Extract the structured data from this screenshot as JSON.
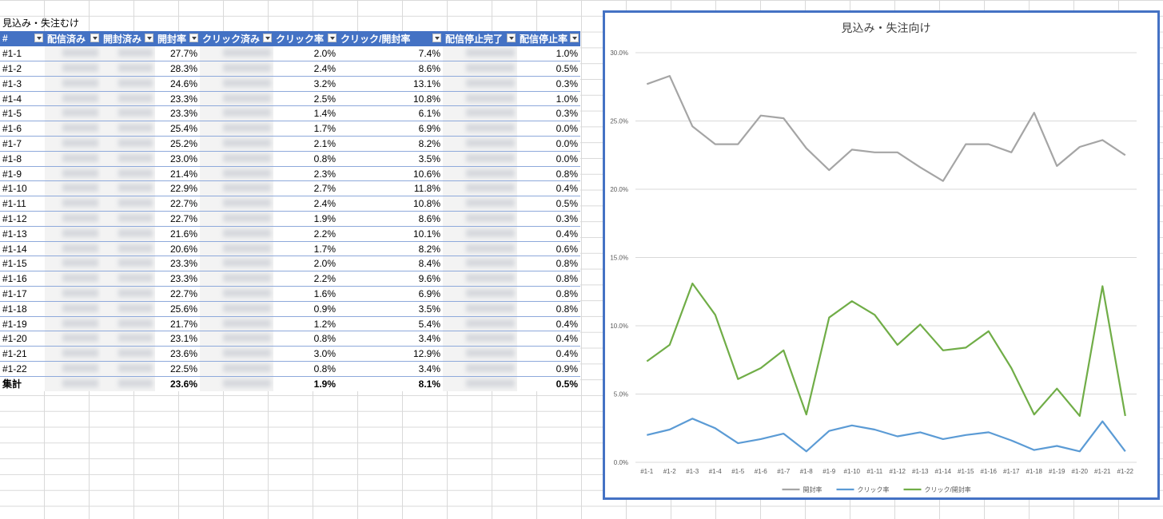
{
  "sheet_title": "見込み・失注むけ",
  "table": {
    "headers": [
      "#",
      "配信済み",
      "開封済み",
      "開封率",
      "クリック済み",
      "クリック率",
      "クリック/開封率",
      "配信停止完了",
      "配信停止率"
    ],
    "rows": [
      {
        "id": "#1-1",
        "open": "27.7%",
        "click": "2.0%",
        "cto": "7.4%",
        "unsub": "1.0%"
      },
      {
        "id": "#1-2",
        "open": "28.3%",
        "click": "2.4%",
        "cto": "8.6%",
        "unsub": "0.5%"
      },
      {
        "id": "#1-3",
        "open": "24.6%",
        "click": "3.2%",
        "cto": "13.1%",
        "unsub": "0.3%"
      },
      {
        "id": "#1-4",
        "open": "23.3%",
        "click": "2.5%",
        "cto": "10.8%",
        "unsub": "1.0%"
      },
      {
        "id": "#1-5",
        "open": "23.3%",
        "click": "1.4%",
        "cto": "6.1%",
        "unsub": "0.3%"
      },
      {
        "id": "#1-6",
        "open": "25.4%",
        "click": "1.7%",
        "cto": "6.9%",
        "unsub": "0.0%"
      },
      {
        "id": "#1-7",
        "open": "25.2%",
        "click": "2.1%",
        "cto": "8.2%",
        "unsub": "0.0%"
      },
      {
        "id": "#1-8",
        "open": "23.0%",
        "click": "0.8%",
        "cto": "3.5%",
        "unsub": "0.0%"
      },
      {
        "id": "#1-9",
        "open": "21.4%",
        "click": "2.3%",
        "cto": "10.6%",
        "unsub": "0.8%"
      },
      {
        "id": "#1-10",
        "open": "22.9%",
        "click": "2.7%",
        "cto": "11.8%",
        "unsub": "0.4%"
      },
      {
        "id": "#1-11",
        "open": "22.7%",
        "click": "2.4%",
        "cto": "10.8%",
        "unsub": "0.5%"
      },
      {
        "id": "#1-12",
        "open": "22.7%",
        "click": "1.9%",
        "cto": "8.6%",
        "unsub": "0.3%"
      },
      {
        "id": "#1-13",
        "open": "21.6%",
        "click": "2.2%",
        "cto": "10.1%",
        "unsub": "0.4%"
      },
      {
        "id": "#1-14",
        "open": "20.6%",
        "click": "1.7%",
        "cto": "8.2%",
        "unsub": "0.6%"
      },
      {
        "id": "#1-15",
        "open": "23.3%",
        "click": "2.0%",
        "cto": "8.4%",
        "unsub": "0.8%"
      },
      {
        "id": "#1-16",
        "open": "23.3%",
        "click": "2.2%",
        "cto": "9.6%",
        "unsub": "0.8%"
      },
      {
        "id": "#1-17",
        "open": "22.7%",
        "click": "1.6%",
        "cto": "6.9%",
        "unsub": "0.8%"
      },
      {
        "id": "#1-18",
        "open": "25.6%",
        "click": "0.9%",
        "cto": "3.5%",
        "unsub": "0.8%"
      },
      {
        "id": "#1-19",
        "open": "21.7%",
        "click": "1.2%",
        "cto": "5.4%",
        "unsub": "0.4%"
      },
      {
        "id": "#1-20",
        "open": "23.1%",
        "click": "0.8%",
        "cto": "3.4%",
        "unsub": "0.4%"
      },
      {
        "id": "#1-21",
        "open": "23.6%",
        "click": "3.0%",
        "cto": "12.9%",
        "unsub": "0.4%"
      },
      {
        "id": "#1-22",
        "open": "22.5%",
        "click": "0.8%",
        "cto": "3.4%",
        "unsub": "0.9%"
      }
    ],
    "total": {
      "label": "集計",
      "open": "23.6%",
      "click": "1.9%",
      "cto": "8.1%",
      "unsub": "0.5%"
    }
  },
  "chart_data": {
    "type": "line",
    "title": "見込み・失注向け",
    "categories": [
      "#1-1",
      "#1-2",
      "#1-3",
      "#1-4",
      "#1-5",
      "#1-6",
      "#1-7",
      "#1-8",
      "#1-9",
      "#1-10",
      "#1-11",
      "#1-12",
      "#1-13",
      "#1-14",
      "#1-15",
      "#1-16",
      "#1-17",
      "#1-18",
      "#1-19",
      "#1-20",
      "#1-21",
      "#1-22"
    ],
    "series": [
      {
        "name": "開封率",
        "color": "#a5a5a5",
        "values": [
          27.7,
          28.3,
          24.6,
          23.3,
          23.3,
          25.4,
          25.2,
          23.0,
          21.4,
          22.9,
          22.7,
          22.7,
          21.6,
          20.6,
          23.3,
          23.3,
          22.7,
          25.6,
          21.7,
          23.1,
          23.6,
          22.5
        ]
      },
      {
        "name": "クリック率",
        "color": "#5b9bd5",
        "values": [
          2.0,
          2.4,
          3.2,
          2.5,
          1.4,
          1.7,
          2.1,
          0.8,
          2.3,
          2.7,
          2.4,
          1.9,
          2.2,
          1.7,
          2.0,
          2.2,
          1.6,
          0.9,
          1.2,
          0.8,
          3.0,
          0.8
        ]
      },
      {
        "name": "クリック/開封率",
        "color": "#70ad47",
        "values": [
          7.4,
          8.6,
          13.1,
          10.8,
          6.1,
          6.9,
          8.2,
          3.5,
          10.6,
          11.8,
          10.8,
          8.6,
          10.1,
          8.2,
          8.4,
          9.6,
          6.9,
          3.5,
          5.4,
          3.4,
          12.9,
          3.4
        ]
      }
    ],
    "ylim": [
      0,
      30
    ],
    "yticks": [
      "0.0%",
      "5.0%",
      "10.0%",
      "15.0%",
      "20.0%",
      "25.0%",
      "30.0%"
    ],
    "grid": true,
    "legend": "bottom"
  }
}
